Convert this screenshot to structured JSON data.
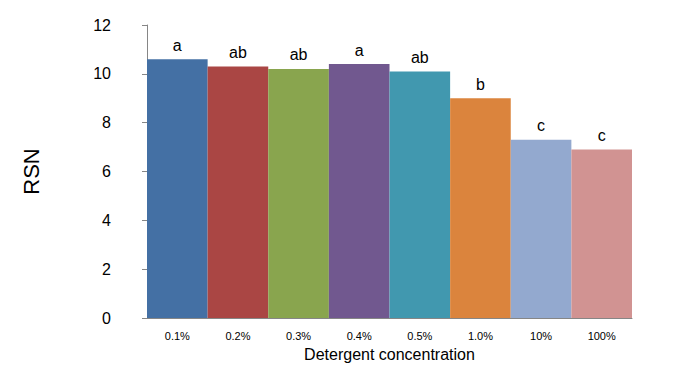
{
  "chart_data": {
    "type": "bar",
    "categories": [
      "0.1%",
      "0.2%",
      "0.3%",
      "0.4%",
      "0.5%",
      "1.0%",
      "10%",
      "100%"
    ],
    "values": [
      10.6,
      10.3,
      10.2,
      10.4,
      10.1,
      9.0,
      7.3,
      6.9
    ],
    "annotations": [
      "a",
      "ab",
      "ab",
      "a",
      "ab",
      "b",
      "c",
      "c"
    ],
    "colors": [
      "#4470a4",
      "#aa4644",
      "#89a54e",
      "#71588f",
      "#4198af",
      "#db843d",
      "#93a9cf",
      "#d19392"
    ],
    "x_label": "Detergent concentration",
    "y_label": "RSN",
    "ylim": [
      0,
      12
    ],
    "yticks": [
      0,
      2,
      4,
      6,
      8,
      10,
      12
    ],
    "grid": false
  }
}
